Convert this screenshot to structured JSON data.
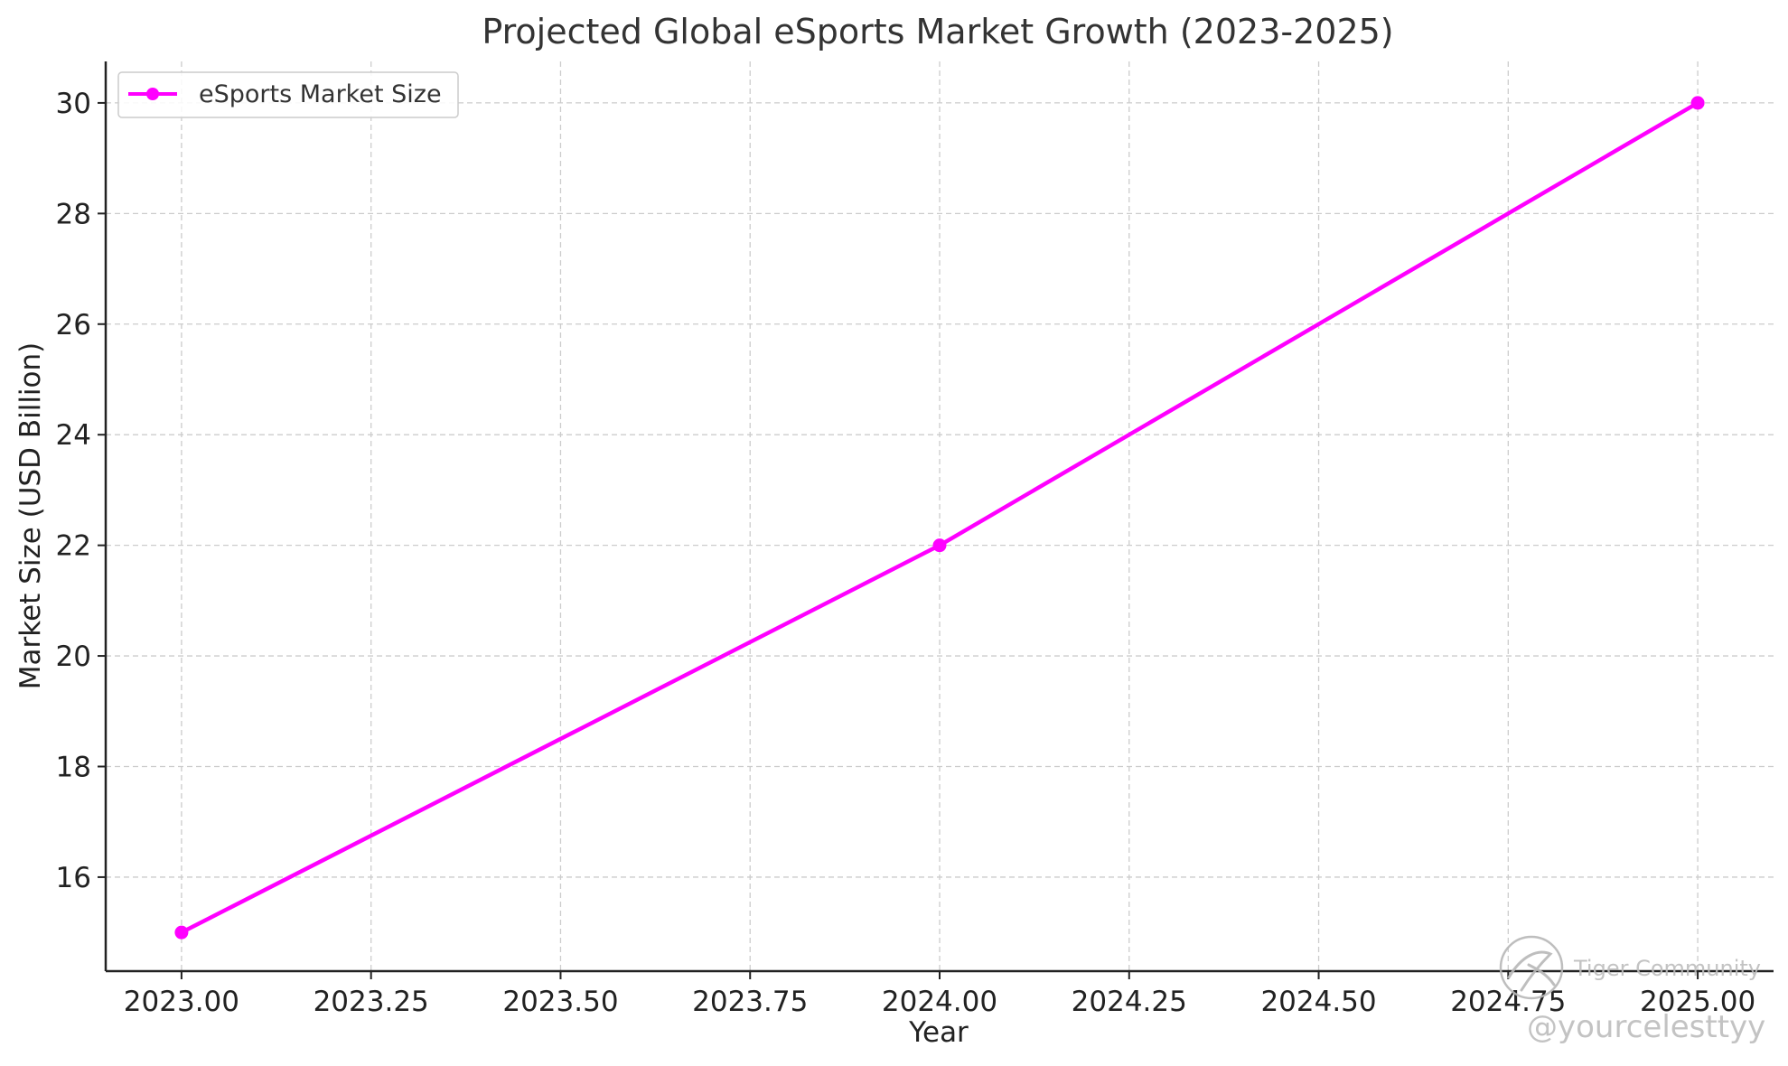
{
  "chart_data": {
    "type": "line",
    "title": "Projected Global eSports Market Growth (2023-2025)",
    "xlabel": "Year",
    "ylabel": "Market Size (USD Billion)",
    "xlim": [
      2022.9,
      2025.1
    ],
    "ylim": [
      14.3,
      30.75
    ],
    "x_ticks": [
      2023.0,
      2023.25,
      2023.5,
      2023.75,
      2024.0,
      2024.25,
      2024.5,
      2024.75,
      2025.0
    ],
    "x_tick_labels": [
      "2023.00",
      "2023.25",
      "2023.50",
      "2023.75",
      "2024.00",
      "2024.25",
      "2024.50",
      "2024.75",
      "2025.00"
    ],
    "y_ticks": [
      16,
      18,
      20,
      22,
      24,
      26,
      28,
      30
    ],
    "y_tick_labels": [
      "16",
      "18",
      "20",
      "22",
      "24",
      "26",
      "28",
      "30"
    ],
    "grid": true,
    "legend_position": "top-left",
    "series": [
      {
        "name": "eSports Market Size",
        "color": "#ff00ff",
        "marker": "circle",
        "x": [
          2023,
          2024,
          2025
        ],
        "y": [
          15,
          22,
          30
        ]
      }
    ]
  },
  "watermark": {
    "line1": "Tiger Community",
    "line2": "@yourcelesttyy"
  }
}
